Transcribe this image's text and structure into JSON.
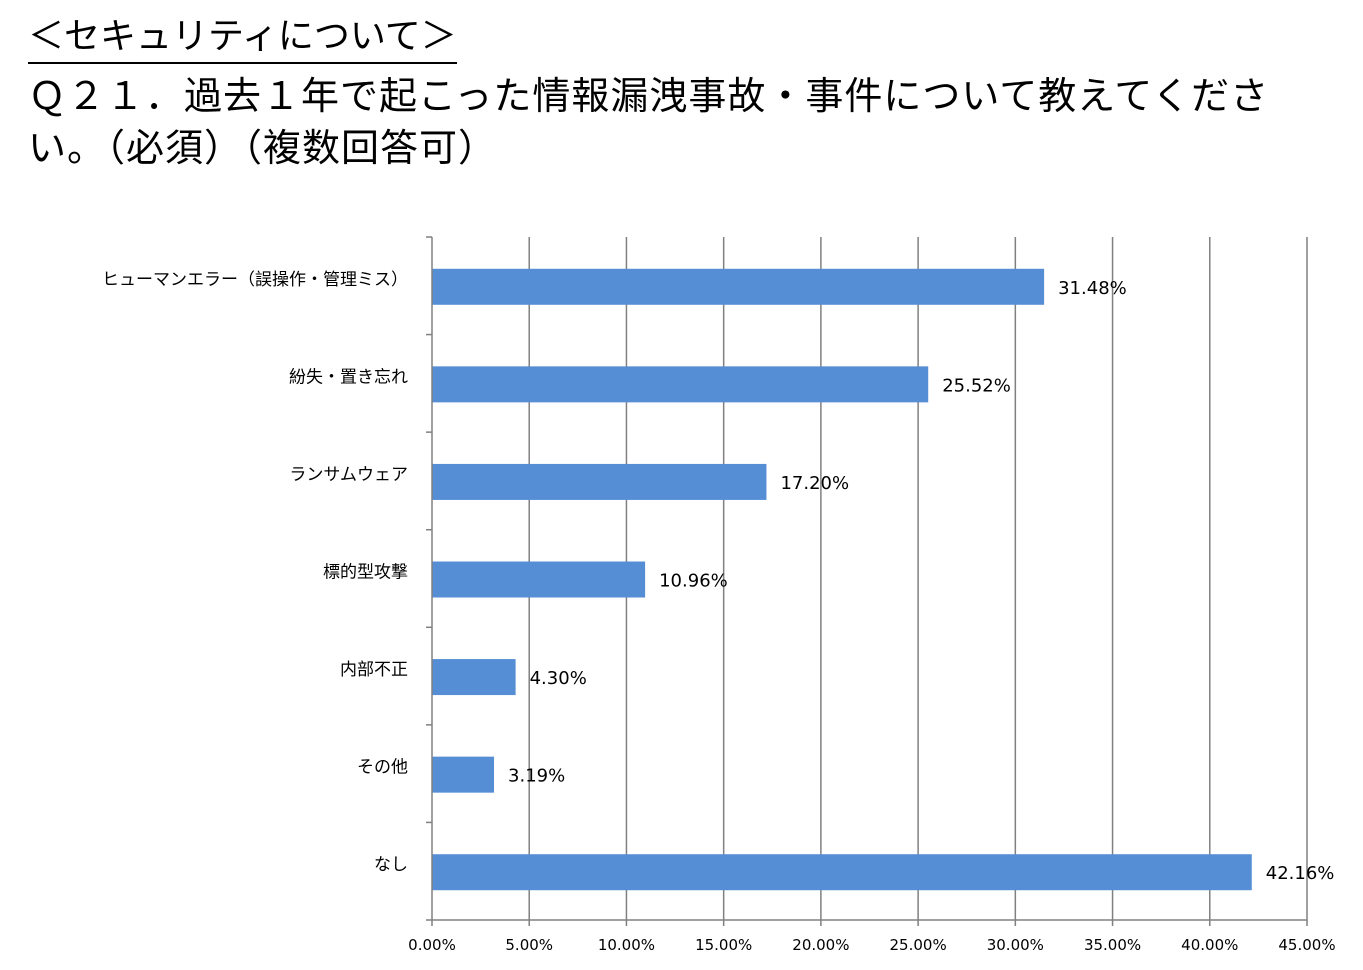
{
  "page": {
    "section_title": "＜セキュリティについて＞",
    "question": "Ｑ２１．過去１年で起こった情報漏洩事故・事件について教えてください。（必須）（複数回答可）"
  },
  "chart_data": {
    "type": "bar",
    "orientation": "horizontal",
    "categories": [
      "ヒューマンエラー（誤操作・管理ミス）",
      "紛失・置き忘れ",
      "ランサムウェア",
      "標的型攻撃",
      "内部不正",
      "その他",
      "なし"
    ],
    "values": [
      31.48,
      25.52,
      17.2,
      10.96,
      4.3,
      3.19,
      42.16
    ],
    "value_labels": [
      "31.48%",
      "25.52%",
      "17.20%",
      "10.96%",
      "4.30%",
      "3.19%",
      "42.16%"
    ],
    "x_ticks": [
      0,
      5,
      10,
      15,
      20,
      25,
      30,
      35,
      40,
      45
    ],
    "x_tick_labels": [
      "0.00%",
      "5.00%",
      "10.00%",
      "15.00%",
      "20.00%",
      "25.00%",
      "30.00%",
      "35.00%",
      "40.00%",
      "45.00%"
    ],
    "xlim": [
      0,
      45
    ],
    "grid": true,
    "bar_color": "#558ED5",
    "grid_color": "#808080"
  }
}
